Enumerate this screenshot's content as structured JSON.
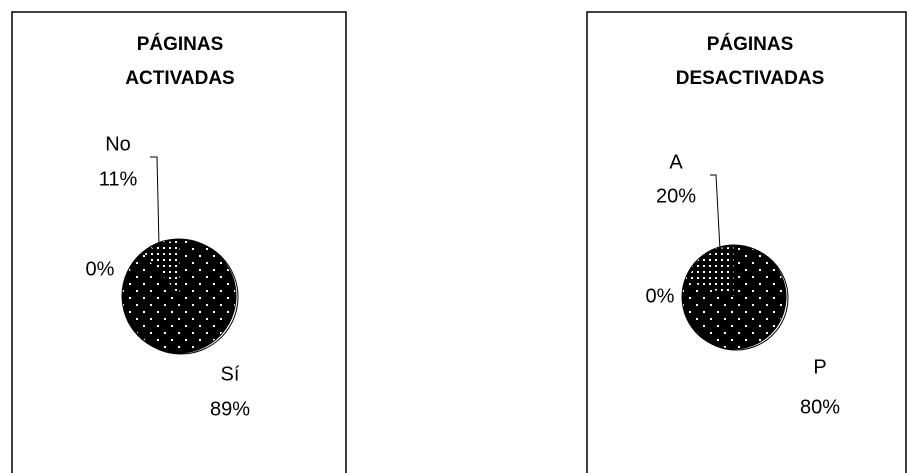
{
  "chart_data": [
    {
      "type": "pie",
      "title": "PÁGINAS ACTIVADAS",
      "categories": [
        "No",
        null,
        "Sí"
      ],
      "values": [
        11,
        0,
        89
      ],
      "value_labels": [
        "11%",
        "0%",
        "89%"
      ]
    },
    {
      "type": "pie",
      "title": "PÁGINAS DESACTIVADAS",
      "categories": [
        "A",
        null,
        "P"
      ],
      "values": [
        20,
        0,
        80
      ],
      "value_labels": [
        "20%",
        "0%",
        "80%"
      ]
    }
  ]
}
